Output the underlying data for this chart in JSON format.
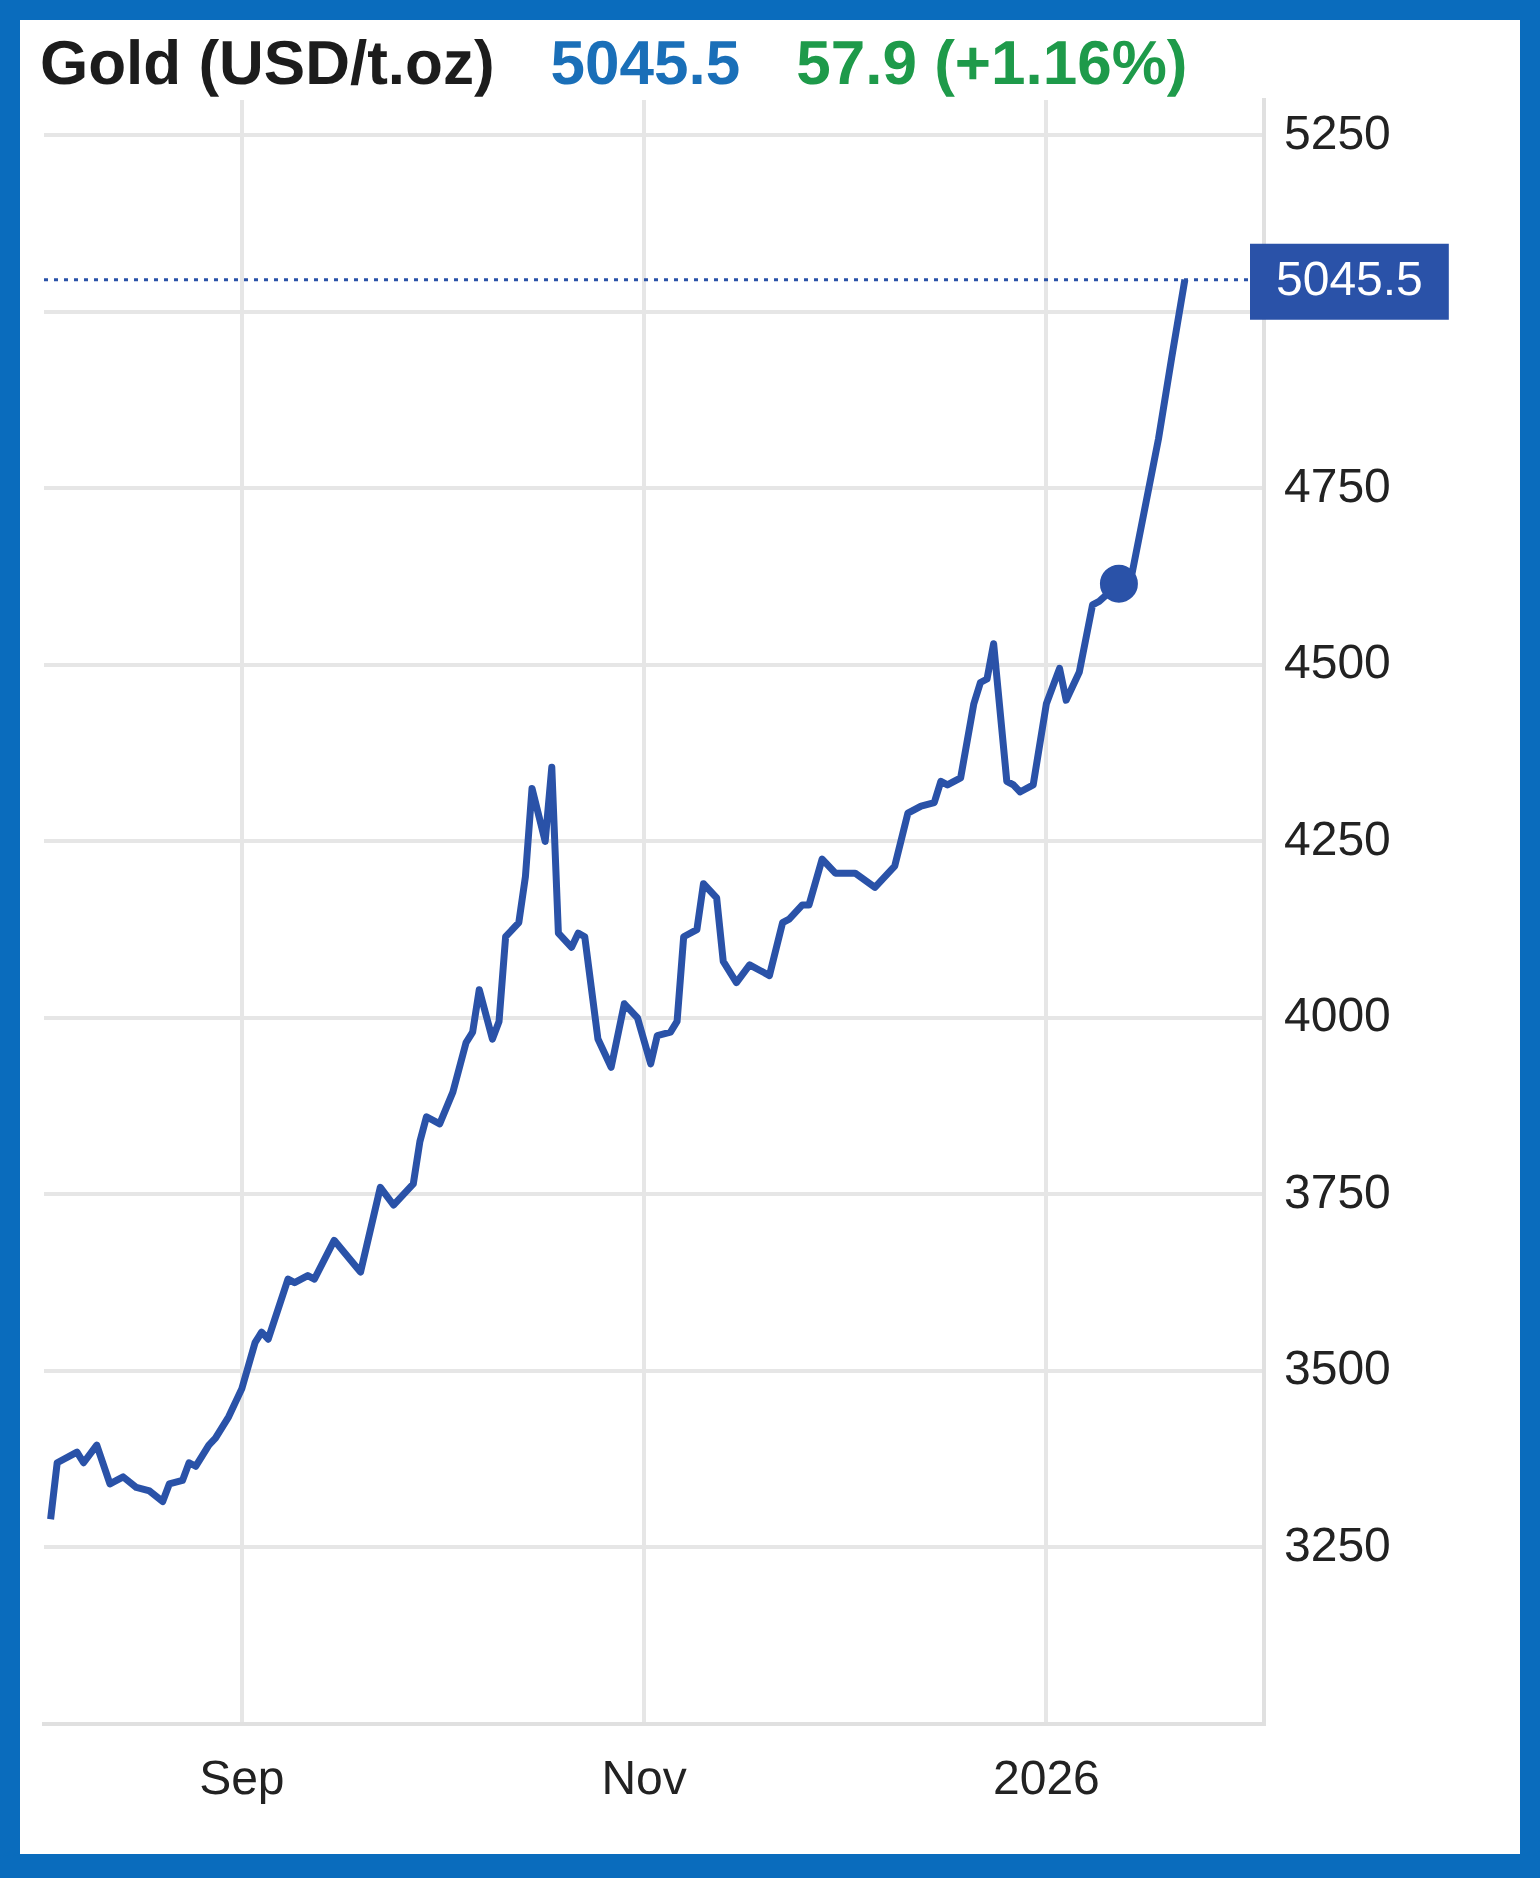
{
  "chart_data": {
    "type": "line",
    "title": "Gold (USD/t.oz)",
    "annotations": [
      "5045.5",
      "57.9 (+1.16%)"
    ],
    "x": [
      "2025-08-03",
      "2025-08-04",
      "2025-08-07",
      "2025-08-08",
      "2025-08-10",
      "2025-08-12",
      "2025-08-14",
      "2025-08-16",
      "2025-08-18",
      "2025-08-20",
      "2025-08-21",
      "2025-08-23",
      "2025-08-24",
      "2025-08-25",
      "2025-08-27",
      "2025-08-28",
      "2025-08-30",
      "2025-09-01",
      "2025-09-03",
      "2025-09-04",
      "2025-09-05",
      "2025-09-08",
      "2025-09-09",
      "2025-09-11",
      "2025-09-12",
      "2025-09-15",
      "2025-09-19",
      "2025-09-22",
      "2025-09-24",
      "2025-09-27",
      "2025-09-28",
      "2025-09-29",
      "2025-10-01",
      "2025-10-03",
      "2025-10-05",
      "2025-10-06",
      "2025-10-07",
      "2025-10-09",
      "2025-10-10",
      "2025-10-11",
      "2025-10-13",
      "2025-10-14",
      "2025-10-15",
      "2025-10-17",
      "2025-10-18",
      "2025-10-19",
      "2025-10-21",
      "2025-10-22",
      "2025-10-23",
      "2025-10-25",
      "2025-10-27",
      "2025-10-29",
      "2025-10-30",
      "2025-10-31",
      "2025-11-02",
      "2025-11-03",
      "2025-11-05",
      "2025-11-06",
      "2025-11-07",
      "2025-11-09",
      "2025-11-10",
      "2025-11-12",
      "2025-11-13",
      "2025-11-15",
      "2025-11-17",
      "2025-11-20",
      "2025-11-22",
      "2025-11-23",
      "2025-11-25",
      "2025-11-26",
      "2025-11-28",
      "2025-11-30",
      "2025-12-03",
      "2025-12-06",
      "2025-12-09",
      "2025-12-11",
      "2025-12-13",
      "2025-12-15",
      "2025-12-16",
      "2025-12-17",
      "2025-12-19",
      "2025-12-21",
      "2025-12-22",
      "2025-12-23",
      "2025-12-24",
      "2025-12-26",
      "2025-12-27",
      "2025-12-28",
      "2025-12-30",
      "2026-01-01",
      "2026-01-03",
      "2026-01-04",
      "2026-01-06",
      "2026-01-08",
      "2026-01-09",
      "2026-01-12",
      "2026-01-14",
      "2026-01-18",
      "2026-01-20",
      "2026-01-22"
    ],
    "series": [
      {
        "color": "#2a52a8",
        "values": [
          3290,
          3370,
          3385,
          3370,
          3395,
          3340,
          3350,
          3335,
          3330,
          3315,
          3340,
          3345,
          3370,
          3365,
          3395,
          3405,
          3435,
          3475,
          3540,
          3555,
          3545,
          3630,
          3625,
          3635,
          3630,
          3685,
          3640,
          3760,
          3735,
          3765,
          3825,
          3860,
          3850,
          3895,
          3965,
          3980,
          4040,
          3970,
          3995,
          4115,
          4135,
          4200,
          4325,
          4250,
          4355,
          4120,
          4100,
          4120,
          4115,
          3970,
          3930,
          4020,
          4010,
          4000,
          3935,
          3975,
          3980,
          3995,
          4115,
          4125,
          4190,
          4170,
          4080,
          4050,
          4075,
          4060,
          4135,
          4140,
          4160,
          4160,
          4225,
          4205,
          4205,
          4185,
          4215,
          4290,
          4300,
          4305,
          4335,
          4330,
          4340,
          4445,
          4475,
          4480,
          4530,
          4335,
          4330,
          4320,
          4330,
          4445,
          4495,
          4450,
          4490,
          4585,
          4590,
          4615,
          4630,
          4820,
          4935,
          5045.5
        ]
      },
      {
        "type": "scatter",
        "color": "#2a52a8",
        "x": [
          "2026-01-12"
        ],
        "values": [
          4615
        ]
      }
    ],
    "xlim": [
      "2025-08-02",
      "2026-02-03"
    ],
    "xticks": [
      {
        "value": "2025-09-01",
        "label": "Sep"
      },
      {
        "value": "2025-11-01",
        "label": "Nov"
      },
      {
        "value": "2026-01-01",
        "label": "2026"
      }
    ],
    "ylim": [
      3000,
      5300
    ],
    "yticks": [
      3250,
      3500,
      3750,
      4000,
      4250,
      4500,
      4750,
      {
        "value": 5000,
        "label": null
      },
      5250
    ],
    "ref_lines": [
      {
        "axis": "y",
        "value": 5045.5,
        "label": "5045.5",
        "color": "#2a52a8",
        "line_style": "dotted"
      }
    ],
    "grid": true
  }
}
